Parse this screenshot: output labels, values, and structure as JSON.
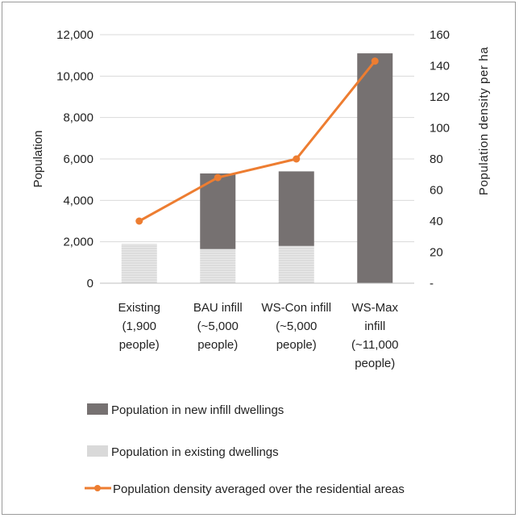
{
  "chart_data": {
    "type": "bar",
    "categories": [
      [
        "Existing",
        "(1,900",
        "people)"
      ],
      [
        "BAU infill",
        "(~5,000",
        "people)"
      ],
      [
        "WS-Con infill",
        "(~5,000",
        "people)"
      ],
      [
        "WS-Max",
        "infill",
        "(~11,000",
        "people)"
      ]
    ],
    "stacked": true,
    "series": [
      {
        "name": "Population in existing dwellings",
        "type": "bar",
        "axis": "left",
        "color": "#d9d9d9",
        "pattern": "light-stripes",
        "values": [
          1900,
          1650,
          1800,
          0
        ]
      },
      {
        "name": "Population in new infill dwellings",
        "type": "bar",
        "axis": "left",
        "color": "#767171",
        "values": [
          0,
          3650,
          3600,
          11100
        ]
      },
      {
        "name": "Population density averaged over the residential areas",
        "type": "line",
        "axis": "right",
        "color": "#ed7d31",
        "marker": "circle",
        "values": [
          40,
          68,
          80,
          143
        ]
      }
    ],
    "ylabel": "Population",
    "y2label": "Population density per ha",
    "ylim": [
      0,
      12000
    ],
    "y2lim": [
      0,
      160
    ],
    "yticks": [
      "0",
      "2,000",
      "4,000",
      "6,000",
      "8,000",
      "10,000",
      "12,000"
    ],
    "y2ticks": [
      "-",
      "20",
      "40",
      "60",
      "80",
      "100",
      "120",
      "140",
      "160"
    ],
    "grid": true,
    "legend_position": "bottom"
  }
}
